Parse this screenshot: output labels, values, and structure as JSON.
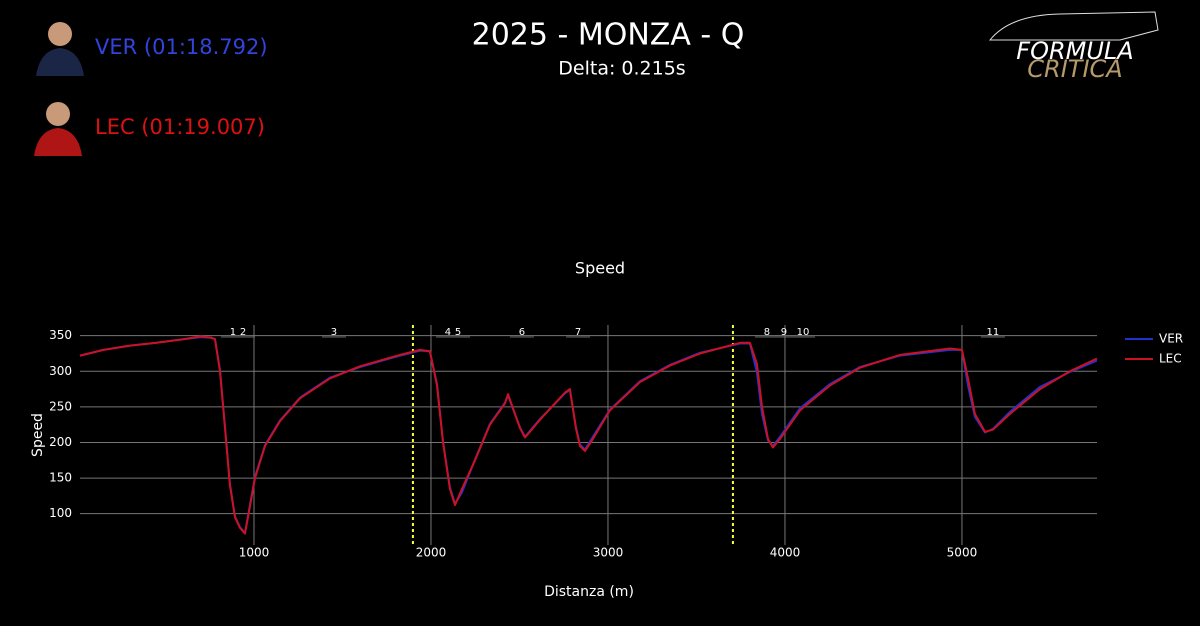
{
  "header": {
    "title": "2025 - MONZA - Q",
    "subtitle": "Delta: 0.215s",
    "drivers": [
      {
        "label": "VER (01:18.792)",
        "color": "#3344dd"
      },
      {
        "label": "LEC (01:19.007)",
        "color": "#dd1111"
      }
    ],
    "logo": [
      "FORMULA",
      "CRITICA"
    ]
  },
  "chart_data": {
    "type": "line",
    "title": "Speed",
    "x_label": "Distanza (m)",
    "y_label": "Speed",
    "x": [
      17,
      150,
      300,
      450,
      600,
      700,
      760,
      780,
      808,
      836,
      864,
      893,
      921,
      949,
      977,
      1006,
      1062,
      1147,
      1260,
      1429,
      1599,
      1825,
      1938,
      1994,
      2034,
      2068,
      2107,
      2136,
      2175,
      2249,
      2333,
      2418,
      2435,
      2503,
      2531,
      2616,
      2757,
      2785,
      2819,
      2842,
      2870,
      2915,
      3011,
      3181,
      3350,
      3520,
      3746,
      3802,
      3842,
      3870,
      3904,
      3932,
      3972,
      4085,
      4254,
      4424,
      4650,
      4932,
      5000,
      5034,
      5073,
      5130,
      5175,
      5271,
      5441,
      5610,
      5763
    ],
    "series": [
      {
        "name": "VER",
        "color": "#2233cc",
        "values": [
          322,
          330,
          336,
          340,
          345,
          348,
          347,
          345,
          302,
          222,
          142,
          96,
          81,
          73,
          112,
          152,
          196,
          231,
          263,
          291,
          306,
          322,
          329,
          328,
          282,
          202,
          137,
          114,
          130,
          176,
          226,
          256,
          266,
          221,
          208,
          233,
          269,
          274,
          222,
          197,
          190,
          208,
          246,
          286,
          309,
          326,
          339,
          339,
          298,
          240,
          203,
          195,
          208,
          248,
          282,
          306,
          322,
          330,
          330,
          280,
          236,
          214,
          219,
          243,
          278,
          299,
          315
        ]
      },
      {
        "name": "LEC",
        "color": "#cc1122",
        "values": [
          322,
          330,
          336,
          340,
          345,
          349,
          347,
          345,
          300,
          220,
          140,
          95,
          80,
          72,
          110,
          150,
          195,
          230,
          262,
          290,
          307,
          323,
          330,
          328,
          280,
          200,
          135,
          112,
          135,
          175,
          225,
          255,
          268,
          220,
          207,
          232,
          270,
          275,
          220,
          195,
          188,
          205,
          245,
          285,
          308,
          325,
          340,
          340,
          310,
          250,
          205,
          193,
          205,
          245,
          280,
          305,
          323,
          332,
          330,
          290,
          240,
          215,
          218,
          240,
          275,
          300,
          318
        ]
      }
    ],
    "xlim": [
      17,
      5763
    ],
    "ylim": [
      56,
      365
    ],
    "xticks": [
      1000,
      2000,
      3000,
      4000,
      5000
    ],
    "yticks": [
      100,
      150,
      200,
      250,
      300,
      350
    ],
    "grid": true,
    "sector_lines": {
      "values": [
        1898,
        3706
      ],
      "color": "#ffff33"
    },
    "annotations": [
      {
        "label": "1",
        "x": 881
      },
      {
        "label": "2",
        "x": 938
      },
      {
        "label": "3",
        "x": 1452
      },
      {
        "label": "4",
        "x": 2096
      },
      {
        "label": "5",
        "x": 2153
      },
      {
        "label": "6",
        "x": 2514
      },
      {
        "label": "7",
        "x": 2831
      },
      {
        "label": "8",
        "x": 3898
      },
      {
        "label": "9",
        "x": 3994
      },
      {
        "label": "10",
        "x": 4102
      },
      {
        "label": "11",
        "x": 5175
      }
    ],
    "legend": "upper-right"
  }
}
